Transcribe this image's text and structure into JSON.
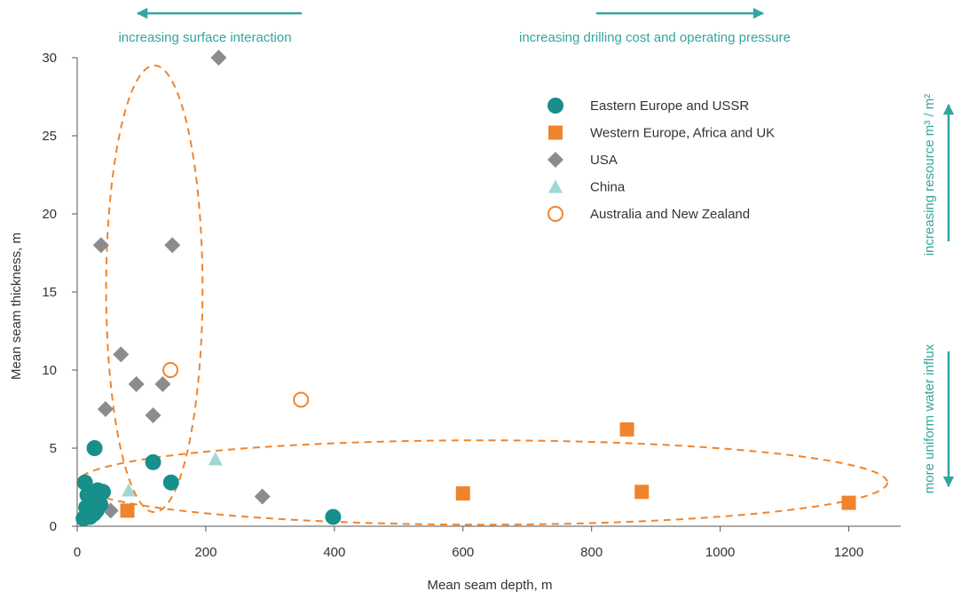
{
  "colors": {
    "teal": "#178f8a",
    "orange": "#f0842c",
    "grey": "#8c8c8f",
    "china": "#9fd8d3",
    "annotation": "#32a69e",
    "axis": "#555555"
  },
  "chart_data": {
    "type": "scatter",
    "title": "",
    "xlabel": "Mean seam depth, m",
    "ylabel": "Mean seam thickness, m",
    "xlim": [
      0,
      1300
    ],
    "ylim": [
      0,
      30
    ],
    "x_ticks": [
      "0",
      "200",
      "400",
      "600",
      "800",
      "1000",
      "1200"
    ],
    "y_ticks": [
      "0",
      "5",
      "10",
      "15",
      "20",
      "25",
      "30"
    ],
    "grid": false,
    "legend_position": "top-right",
    "series": [
      {
        "name": "Eastern Europe and USSR",
        "marker": "circle",
        "color": "#178f8a",
        "points": [
          [
            10,
            0.5
          ],
          [
            14,
            1.2
          ],
          [
            16,
            2.0
          ],
          [
            20,
            0.6
          ],
          [
            24,
            1.5
          ],
          [
            26,
            0.8
          ],
          [
            28,
            1.8
          ],
          [
            30,
            1.0
          ],
          [
            32,
            2.3
          ],
          [
            36,
            1.4
          ],
          [
            40,
            2.2
          ],
          [
            12,
            2.8
          ],
          [
            27,
            5.0
          ],
          [
            118,
            4.1
          ],
          [
            146,
            2.8
          ],
          [
            398,
            0.6
          ]
        ]
      },
      {
        "name": "Western Europe, Africa and UK",
        "marker": "square",
        "color": "#f0842c",
        "points": [
          [
            78,
            1.0
          ],
          [
            600,
            2.1
          ],
          [
            855,
            6.2
          ],
          [
            878,
            2.2
          ],
          [
            1200,
            1.5
          ]
        ]
      },
      {
        "name": "USA",
        "marker": "diamond",
        "color": "#8c8c8f",
        "points": [
          [
            220,
            30.0
          ],
          [
            37,
            18.0
          ],
          [
            148,
            18.0
          ],
          [
            68,
            11.0
          ],
          [
            92,
            9.1
          ],
          [
            133,
            9.1
          ],
          [
            44,
            7.5
          ],
          [
            118,
            7.1
          ],
          [
            52,
            1.0
          ],
          [
            288,
            1.9
          ]
        ]
      },
      {
        "name": "China",
        "marker": "triangle",
        "color": "#9fd8d3",
        "points": [
          [
            80,
            2.3
          ],
          [
            215,
            4.3
          ]
        ]
      },
      {
        "name": "Australia and New Zealand",
        "marker": "open-circle",
        "color": "#f0842c",
        "points": [
          [
            145,
            10.0
          ],
          [
            348,
            8.1
          ]
        ]
      }
    ],
    "annotations": {
      "left_arrow": "increasing surface interaction",
      "right_arrow": "increasing drilling cost and operating pressure",
      "up_arrow": "increasing resource m³ / m²",
      "down_arrow": "more uniform water influx"
    },
    "ellipses": [
      {
        "cx": 120,
        "cy": 15.2,
        "rx": 75,
        "ry": 14.3,
        "style": "dashed",
        "color": "#f0842c"
      },
      {
        "cx": 630,
        "cy": 2.8,
        "rx": 630,
        "ry": 2.7,
        "style": "dashed",
        "color": "#f0842c"
      }
    ]
  }
}
